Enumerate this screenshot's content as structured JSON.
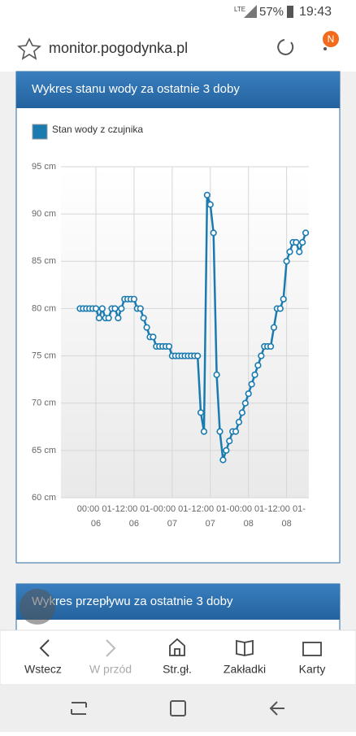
{
  "status_bar": {
    "network": "LTE",
    "battery": "57%",
    "time": "19:43"
  },
  "browser": {
    "url": "monitor.pogodynka.pl",
    "profile": "N"
  },
  "panels": [
    {
      "title": "Wykres stanu wody za ostatnie 3 doby"
    },
    {
      "title": "Wykres przepływu za ostatnie 3 doby"
    }
  ],
  "chart_data": {
    "type": "line",
    "x": [
      -5,
      -4,
      -3,
      -2,
      -1,
      0,
      1,
      2,
      3,
      4,
      5,
      6,
      7,
      8,
      9,
      10,
      11,
      12,
      13,
      14,
      15,
      16,
      17,
      18,
      19,
      20,
      21,
      22,
      23,
      24,
      25,
      26,
      27,
      28,
      29,
      30,
      31,
      32,
      33,
      34,
      35,
      36,
      37,
      38,
      39,
      40,
      41,
      42,
      43,
      44,
      45,
      46,
      47,
      48,
      49,
      50,
      51,
      52,
      53,
      54,
      55,
      56,
      57,
      58,
      59,
      60,
      61,
      62,
      63,
      64,
      65,
      66
    ],
    "series": [
      {
        "name": "Stan wody z czujnika",
        "color": "#1a7bb0",
        "values": [
          80,
          80,
          80,
          80,
          80,
          80,
          79,
          80,
          79,
          79,
          80,
          80,
          79,
          80,
          81,
          81,
          81,
          81,
          80,
          80,
          79,
          78,
          77,
          77,
          76,
          76,
          76,
          76,
          76,
          75,
          75,
          75,
          75,
          75,
          75,
          75,
          75,
          75,
          69,
          67,
          92,
          91,
          88,
          73,
          67,
          64,
          65,
          66,
          67,
          67,
          68,
          69,
          70,
          71,
          72,
          73,
          74,
          75,
          76,
          76,
          76,
          78,
          80,
          80,
          81,
          85,
          86,
          87,
          87,
          86,
          87,
          88
        ]
      }
    ],
    "xlim": [
      -11,
      67
    ],
    "xticks": [
      {
        "value": 0,
        "label": "00:00 01-06"
      },
      {
        "value": 12,
        "label": "12:00 01-06"
      },
      {
        "value": 24,
        "label": "00:00 01-07"
      },
      {
        "value": 36,
        "label": "12:00 01-07"
      },
      {
        "value": 48,
        "label": "00:00 01-08"
      },
      {
        "value": 60,
        "label": "12:00 01-08"
      }
    ],
    "ylim": [
      60,
      95
    ],
    "yticks": [
      {
        "value": 60,
        "label": "60 cm"
      },
      {
        "value": 65,
        "label": "65 cm"
      },
      {
        "value": 70,
        "label": "70 cm"
      },
      {
        "value": 75,
        "label": "75 cm"
      },
      {
        "value": 80,
        "label": "80 cm"
      },
      {
        "value": 85,
        "label": "85 cm"
      },
      {
        "value": 90,
        "label": "90 cm"
      },
      {
        "value": 95,
        "label": "95 cm"
      }
    ],
    "grid": true,
    "legend": "top-left"
  },
  "nav": [
    "Wstecz",
    "W przód",
    "Str.gł.",
    "Zakładki",
    "Karty"
  ]
}
